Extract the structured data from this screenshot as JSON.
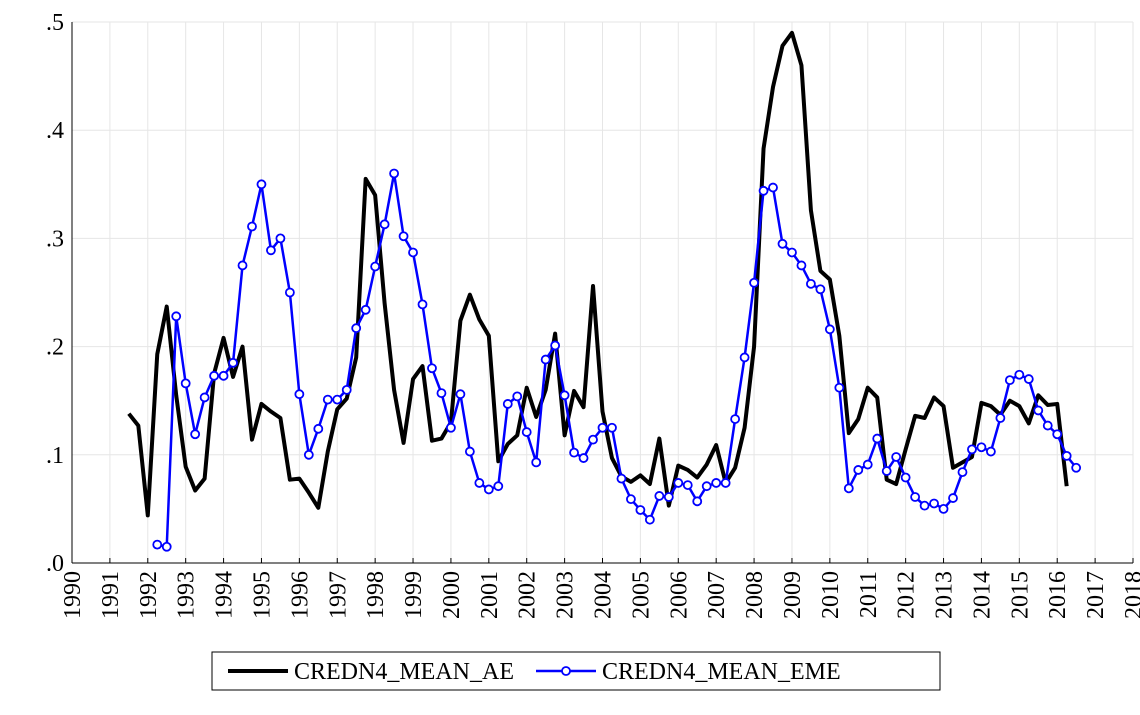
{
  "chart_data": {
    "type": "line",
    "x": [
      1991.5,
      1991.75,
      1992,
      1992.25,
      1992.5,
      1992.75,
      1993,
      1993.25,
      1993.5,
      1993.75,
      1994,
      1994.25,
      1994.5,
      1994.75,
      1995,
      1995.25,
      1995.5,
      1995.75,
      1996,
      1996.25,
      1996.5,
      1996.75,
      1997,
      1997.25,
      1997.5,
      1997.75,
      1998,
      1998.25,
      1998.5,
      1998.75,
      1999,
      1999.25,
      1999.5,
      1999.75,
      2000,
      2000.25,
      2000.5,
      2000.75,
      2001,
      2001.25,
      2001.5,
      2001.75,
      2002,
      2002.25,
      2002.5,
      2002.75,
      2003,
      2003.25,
      2003.5,
      2003.75,
      2004,
      2004.25,
      2004.5,
      2004.75,
      2005,
      2005.25,
      2005.5,
      2005.75,
      2006,
      2006.25,
      2006.5,
      2006.75,
      2007,
      2007.25,
      2007.5,
      2007.75,
      2008,
      2008.25,
      2008.5,
      2008.75,
      2009,
      2009.25,
      2009.5,
      2009.75,
      2010,
      2010.25,
      2010.5,
      2010.75,
      2011,
      2011.25,
      2011.5,
      2011.75,
      2012,
      2012.25,
      2012.5,
      2012.75,
      2013,
      2013.25,
      2013.5,
      2013.75,
      2014,
      2014.25,
      2014.5,
      2014.75,
      2015,
      2015.25,
      2015.5,
      2015.75,
      2016,
      2016.25,
      2016.5
    ],
    "series": [
      {
        "name": "CREDN4_MEAN_AE",
        "color": "#000000",
        "marker": "none",
        "values": [
          0.138,
          0.127,
          0.044,
          0.193,
          0.237,
          0.155,
          0.089,
          0.067,
          0.078,
          0.175,
          0.208,
          0.172,
          0.2,
          0.114,
          0.147,
          0.14,
          0.134,
          0.077,
          0.078,
          0.065,
          0.051,
          0.103,
          0.142,
          0.152,
          0.19,
          0.355,
          0.34,
          0.24,
          0.16,
          0.111,
          0.17,
          0.182,
          0.113,
          0.115,
          0.13,
          0.224,
          0.248,
          0.225,
          0.21,
          0.094,
          0.11,
          0.118,
          0.162,
          0.135,
          0.16,
          0.212,
          0.118,
          0.159,
          0.144,
          0.256,
          0.14,
          0.097,
          0.08,
          0.075,
          0.081,
          0.073,
          0.115,
          0.053,
          0.09,
          0.086,
          0.079,
          0.091,
          0.109,
          0.074,
          0.088,
          0.125,
          0.2,
          0.383,
          0.44,
          0.478,
          0.49,
          0.46,
          0.326,
          0.27,
          0.262,
          0.21,
          0.12,
          0.133,
          0.162,
          0.153,
          0.077,
          0.073,
          0.105,
          0.136,
          0.134,
          0.153,
          0.145,
          0.088,
          0.093,
          0.098,
          0.148,
          0.145,
          0.137,
          0.15,
          0.145,
          0.129,
          0.155,
          0.146,
          0.147,
          0.071,
          null
        ]
      },
      {
        "name": "CREDN4_MEAN_EME",
        "color": "#0000ff",
        "marker": "circle",
        "values": [
          null,
          null,
          null,
          0.017,
          0.015,
          0.228,
          0.166,
          0.119,
          0.153,
          0.173,
          0.173,
          0.185,
          0.275,
          0.311,
          0.35,
          0.289,
          0.3,
          0.25,
          0.156,
          0.1,
          0.124,
          0.151,
          0.151,
          0.16,
          0.217,
          0.234,
          0.274,
          0.313,
          0.36,
          0.302,
          0.287,
          0.239,
          0.18,
          0.157,
          0.125,
          0.156,
          0.103,
          0.074,
          0.068,
          0.071,
          0.147,
          0.154,
          0.121,
          0.093,
          0.188,
          0.201,
          0.155,
          0.102,
          0.097,
          0.114,
          0.125,
          0.125,
          0.078,
          0.059,
          0.049,
          0.04,
          0.062,
          0.061,
          0.074,
          0.072,
          0.057,
          0.071,
          0.074,
          0.074,
          0.133,
          0.19,
          0.259,
          0.344,
          0.347,
          0.295,
          0.287,
          0.275,
          0.258,
          0.253,
          0.216,
          0.162,
          0.069,
          0.086,
          0.091,
          0.115,
          0.085,
          0.098,
          0.079,
          0.061,
          0.053,
          0.055,
          0.05,
          0.06,
          0.084,
          0.105,
          0.107,
          0.103,
          0.134,
          0.169,
          0.174,
          0.17,
          0.141,
          0.127,
          0.119,
          0.099,
          0.088
        ]
      }
    ],
    "xlim": [
      1990,
      2018
    ],
    "xticks": [
      1990,
      1991,
      1992,
      1993,
      1994,
      1995,
      1996,
      1997,
      1998,
      1999,
      2000,
      2001,
      2002,
      2003,
      2004,
      2005,
      2006,
      2007,
      2008,
      2009,
      2010,
      2011,
      2012,
      2013,
      2014,
      2015,
      2016,
      2017,
      2018
    ],
    "ylim": [
      0,
      0.5
    ],
    "yticks": [
      {
        "value": 0,
        "label": ".0"
      },
      {
        "value": 0.1,
        "label": ".1"
      },
      {
        "value": 0.2,
        "label": ".2"
      },
      {
        "value": 0.3,
        "label": ".3"
      },
      {
        "value": 0.4,
        "label": ".4"
      },
      {
        "value": 0.5,
        "label": ".5"
      }
    ],
    "grid": true
  }
}
